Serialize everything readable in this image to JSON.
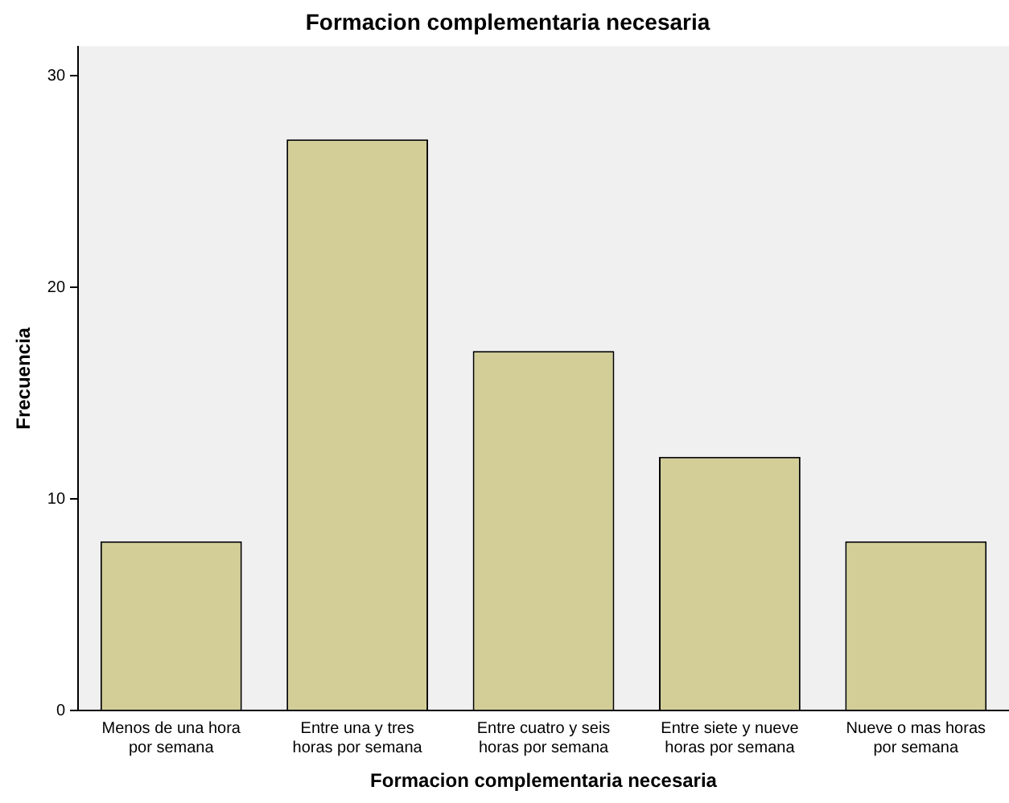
{
  "chart_data": {
    "type": "bar",
    "title": "Formacion complementaria necesaria",
    "xlabel": "Formacion complementaria necesaria",
    "ylabel": "Frecuencia",
    "categories": [
      "Menos de una hora\npor semana",
      "Entre una y tres\nhoras por semana",
      "Entre cuatro y seis\nhoras por semana",
      "Entre siete y nueve\nhoras por semana",
      "Nueve o mas horas\npor semana"
    ],
    "values": [
      8,
      27,
      17,
      12,
      8
    ],
    "color": "#d3ce97",
    "ylim": [
      0,
      31.4
    ],
    "yticks": [
      0,
      10,
      20,
      30
    ],
    "grid": false,
    "legend": false
  }
}
